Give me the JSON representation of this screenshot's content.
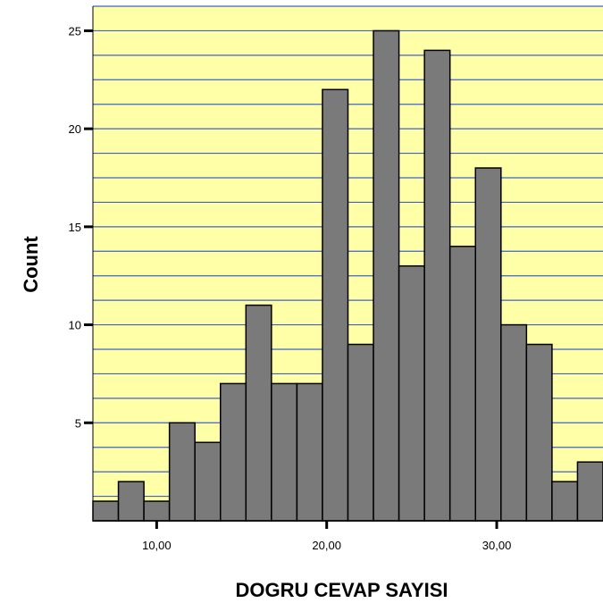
{
  "chart_data": {
    "type": "bar",
    "title": "",
    "xlabel": "DOGRU CEVAP SAYISI",
    "ylabel": "Count",
    "bins": [
      {
        "x": 7.0,
        "count": 1
      },
      {
        "x": 8.5,
        "count": 2
      },
      {
        "x": 10.0,
        "count": 1
      },
      {
        "x": 11.5,
        "count": 5
      },
      {
        "x": 13.0,
        "count": 4
      },
      {
        "x": 14.5,
        "count": 7
      },
      {
        "x": 16.0,
        "count": 11
      },
      {
        "x": 17.5,
        "count": 7
      },
      {
        "x": 19.0,
        "count": 7
      },
      {
        "x": 20.5,
        "count": 22
      },
      {
        "x": 22.0,
        "count": 9
      },
      {
        "x": 23.5,
        "count": 25
      },
      {
        "x": 25.0,
        "count": 13
      },
      {
        "x": 26.5,
        "count": 24
      },
      {
        "x": 28.0,
        "count": 14
      },
      {
        "x": 29.5,
        "count": 18
      },
      {
        "x": 31.0,
        "count": 10
      },
      {
        "x": 32.5,
        "count": 9
      },
      {
        "x": 34.0,
        "count": 2
      },
      {
        "x": 35.5,
        "count": 3
      }
    ],
    "bin_width": 1.5,
    "xlim": [
      6.25,
      36.25
    ],
    "ylim": [
      0,
      26.25
    ],
    "x_ticks": [
      {
        "value": 10,
        "label": "10,00"
      },
      {
        "value": 20,
        "label": "20,00"
      },
      {
        "value": 30,
        "label": "30,00"
      }
    ],
    "y_ticks": [
      {
        "value": 5,
        "label": "5"
      },
      {
        "value": 10,
        "label": "10"
      },
      {
        "value": 15,
        "label": "15"
      },
      {
        "value": 20,
        "label": "20"
      },
      {
        "value": 25,
        "label": "25"
      }
    ],
    "gridlines": "horizontal",
    "grid_step": 1.25,
    "colors": {
      "background": "#ffffa8",
      "grid": "#4060c8",
      "bar_fill": "#7a7a7a",
      "bar_stroke": "#000000"
    }
  }
}
